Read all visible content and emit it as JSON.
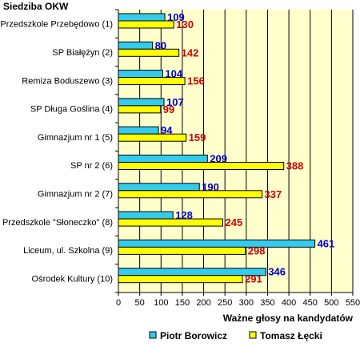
{
  "chart_data": {
    "type": "bar",
    "orientation": "horizontal",
    "ylabel": "Siedziba OKW",
    "xlabel": "Ważne głosy na kandydatów",
    "xlim": [
      0,
      550
    ],
    "x_ticks": [
      0,
      50,
      100,
      150,
      200,
      250,
      300,
      350,
      400,
      450,
      500,
      550
    ],
    "grid": true,
    "legend_position": "bottom",
    "plot_background": "#ffffcc",
    "categories": [
      "Przedszkole Przebędowo (1)",
      "SP Białężyn (2)",
      "Remiza Boduszewo (3)",
      "SP Długa Goślina (4)",
      "Gimnazjum nr 1 (5)",
      "SP nr 2 (6)",
      "Gimnazjum nr 2 (7)",
      "Przedszkole \"Słoneczko\" (8)",
      "Liceum, ul. Szkolna (9)",
      "Ośrodek Kultury (10)"
    ],
    "series": [
      {
        "name": "Piotr Borowicz",
        "color": "#33ccee",
        "label_color": "#0000cc",
        "values": [
          109,
          80,
          104,
          107,
          94,
          209,
          190,
          128,
          461,
          346
        ]
      },
      {
        "name": "Tomasz Łęcki",
        "color": "#ffff00",
        "label_color": "#cc0000",
        "values": [
          130,
          142,
          156,
          99,
          159,
          388,
          337,
          245,
          298,
          291
        ]
      }
    ]
  }
}
